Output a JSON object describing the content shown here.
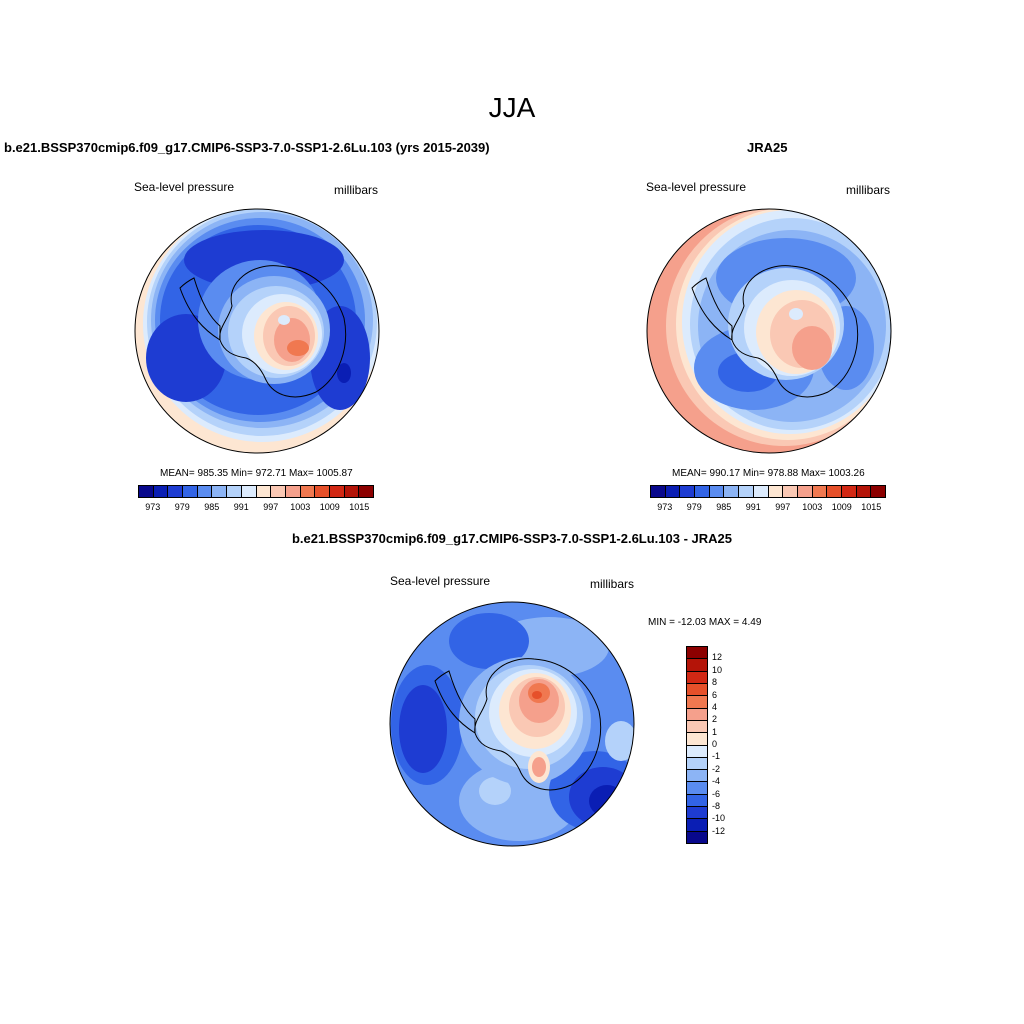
{
  "figure": {
    "title": "JJA"
  },
  "panels": {
    "left": {
      "title": "b.e21.BSSP370cmip6.f09_g17.CMIP6-SSP3-7.0-SSP1-2.6Lu.103 (yrs 2015-2039)",
      "variable": "Sea-level pressure",
      "units": "millibars",
      "stats": "MEAN= 985.35  Min= 972.71  Max= 1005.87"
    },
    "right": {
      "title": "JRA25",
      "variable": "Sea-level pressure",
      "units": "millibars",
      "stats": "MEAN= 990.17  Min= 978.88  Max= 1003.26"
    },
    "bottom": {
      "title": "b.e21.BSSP370cmip6.f09_g17.CMIP6-SSP3-7.0-SSP1-2.6Lu.103 - JRA25",
      "variable": "Sea-level pressure",
      "units": "millibars",
      "stats": "MIN = -12.03 MAX =   4.49"
    }
  },
  "colorbar_abs": {
    "ticks": [
      "973",
      "979",
      "985",
      "991",
      "997",
      "1003",
      "1009",
      "1015"
    ],
    "colors": [
      "#08088c",
      "#0a1eb4",
      "#1e3cd2",
      "#3264e6",
      "#5a8cf0",
      "#8cb4f5",
      "#b4d2fa",
      "#dcebfd",
      "#fde6d2",
      "#fac8b4",
      "#f5a08c",
      "#f07850",
      "#e6502a",
      "#d22814",
      "#b41408",
      "#8c0000"
    ]
  },
  "colorbar_diff": {
    "ticks": [
      "12",
      "10",
      "8",
      "6",
      "4",
      "2",
      "1",
      "0",
      "-1",
      "-2",
      "-4",
      "-6",
      "-8",
      "-10",
      "-12"
    ],
    "colors": [
      "#8c0000",
      "#b41408",
      "#d22814",
      "#e6502a",
      "#f07850",
      "#f5a08c",
      "#fac8b4",
      "#fde6d2",
      "#dcebfd",
      "#b4d2fa",
      "#8cb4f5",
      "#5a8cf0",
      "#3264e6",
      "#1e3cd2",
      "#0a1eb4",
      "#08088c"
    ]
  },
  "map_colors": {
    "deep_blue": "#0a1eb4",
    "blue": "#1e3cd2",
    "mid_blue": "#3264e6",
    "light_blue": "#5a8cf0",
    "pale_blue": "#8cb4f5",
    "very_pale_blue": "#b4d2fa",
    "ice_blue": "#dcebfd",
    "cream": "#fde6d2",
    "peach": "#fac8b4",
    "salmon": "#f5a08c",
    "coral": "#f07850",
    "red_orange": "#e6502a"
  }
}
